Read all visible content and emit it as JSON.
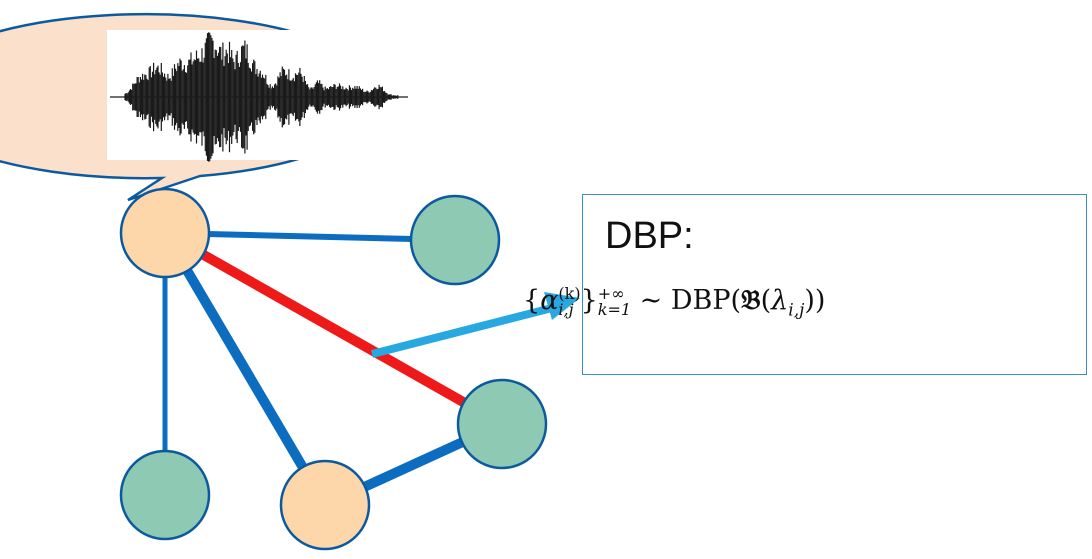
{
  "colors": {
    "node_peach": "#fdd7a9",
    "node_teal": "#8ec9b4",
    "node_stroke": "#0b5aa0",
    "edge_blue": "#0c6cbf",
    "edge_red": "#ee1a1a",
    "arrow": "#28a8e0",
    "bubble_fill": "#fbe1cc",
    "box_border": "#3b8fc4"
  },
  "speech_bubble": {
    "content": "audio-waveform"
  },
  "dbp_box": {
    "title": "DBP:",
    "formula": {
      "alpha": "α",
      "sub": "i,j",
      "sup": "(k)",
      "range_upper": "+∞",
      "range_lower": "k=1",
      "relation": "∼",
      "dist": "DBP",
      "frak": "𝔅",
      "lambda": "λ"
    }
  }
}
